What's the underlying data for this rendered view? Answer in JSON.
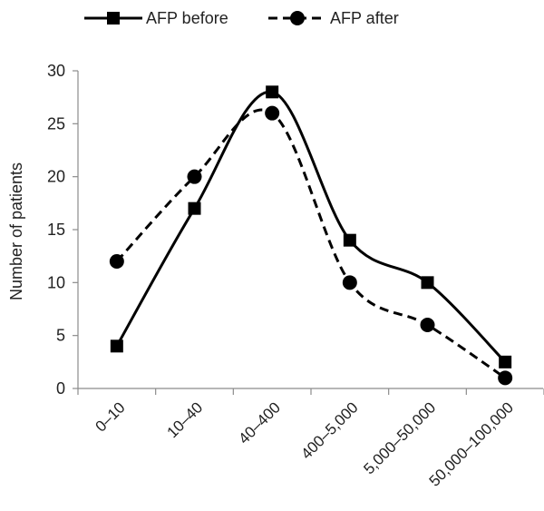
{
  "chart_data": {
    "type": "line",
    "categories": [
      "0–10",
      "10–40",
      "40–400",
      "400–5,000",
      "5,000–50,000",
      "50,000–100,000"
    ],
    "series": [
      {
        "name": "AFP before",
        "values": [
          4,
          17,
          28,
          14,
          10,
          2.5
        ],
        "color": "#000000",
        "dash": "solid",
        "marker": "square"
      },
      {
        "name": "AFP after",
        "values": [
          12,
          20,
          26,
          10,
          6,
          1
        ],
        "color": "#000000",
        "dash": "dashed",
        "marker": "circle"
      }
    ],
    "title": "",
    "xlabel": "",
    "ylabel": "Number of patients",
    "ylim": [
      0,
      30
    ],
    "yticks": [
      0,
      5,
      10,
      15,
      20,
      25,
      30
    ],
    "smooth": true,
    "grid": false,
    "legend": "top-left"
  }
}
